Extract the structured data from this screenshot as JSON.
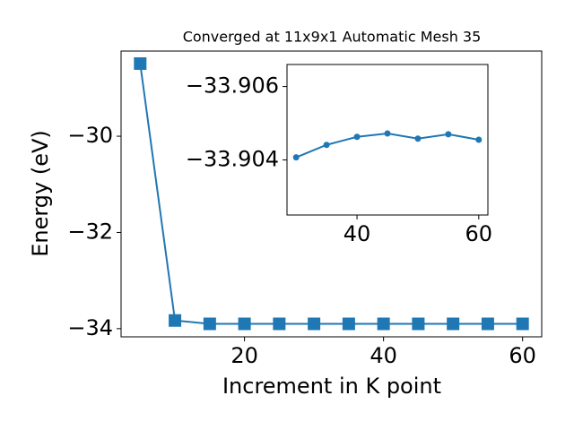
{
  "chart_data": [
    {
      "type": "line",
      "title": "Converged at 11x9x1 Automatic Mesh 35",
      "x_label": "Increment in K point",
      "y_label": "Energy (eV)",
      "x": [
        5,
        10,
        15,
        20,
        25,
        30,
        35,
        40,
        45,
        50,
        55,
        60
      ],
      "series": [
        {
          "name": "Energy",
          "color": "#1f77b4",
          "marker": "square",
          "values": [
            -28.49,
            -33.83,
            -33.9,
            -33.9,
            -33.9,
            -33.9,
            -33.9,
            -33.9,
            -33.9,
            -33.9,
            -33.9,
            -33.9
          ]
        }
      ],
      "xlim": [
        2.25,
        62.75
      ],
      "ylim": [
        -34.17,
        -28.23
      ],
      "xticks": [
        20,
        40,
        60
      ],
      "yticks": [
        {
          "value": -34,
          "label": "−34"
        },
        {
          "value": -32,
          "label": "−32"
        },
        {
          "value": -30,
          "label": "−30"
        }
      ]
    },
    {
      "type": "line",
      "x": [
        30,
        35,
        40,
        45,
        50,
        55,
        60
      ],
      "series": [
        {
          "name": "Energy",
          "color": "#1f77b4",
          "marker": "circle",
          "values": [
            -33.90407,
            -33.90441,
            -33.90463,
            -33.90472,
            -33.90458,
            -33.9047,
            -33.90455
          ]
        }
      ],
      "xlim": [
        28.5,
        61.5
      ],
      "ylim": [
        -33.9025,
        -33.9066
      ],
      "xticks": [
        40,
        60
      ],
      "yticks": [
        {
          "value": -33.904,
          "label": "−33.904"
        },
        {
          "value": -33.906,
          "label": "−33.906"
        }
      ]
    }
  ]
}
